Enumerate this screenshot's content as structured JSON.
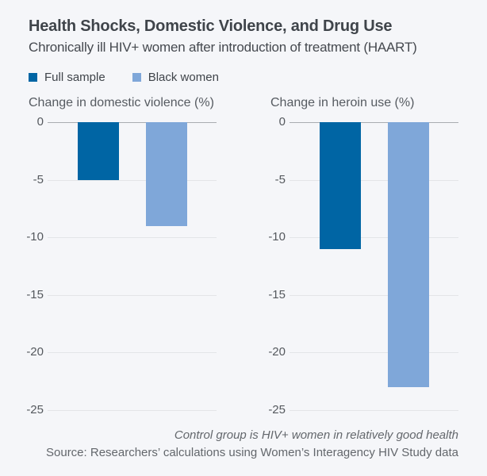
{
  "header": {
    "title": "Health Shocks, Domestic Violence, and Drug Use",
    "subtitle": "Chronically ill HIV+ women after introduction of treatment (HAART)"
  },
  "legend": [
    {
      "label": "Full sample",
      "color": "#0065A4"
    },
    {
      "label": "Black women",
      "color": "#7FA7D9"
    }
  ],
  "colors": {
    "background": "#F5F6F9",
    "full_sample_bar": "#0065A4",
    "black_women_bar": "#7FA7D9",
    "gridline": "#E3E5E8",
    "zero_line": "#A9ACB1",
    "heading_text": "#3F444A",
    "axis_text": "#55595E"
  },
  "chart_data": [
    {
      "type": "bar",
      "title": "Change in domestic violence (%)",
      "categories": [
        "Full sample",
        "Black women"
      ],
      "values": [
        -5,
        -9
      ],
      "ylabel": "Change in domestic violence (%)",
      "ylim": [
        -25,
        0
      ],
      "yticks": [
        0,
        -5,
        -10,
        -15,
        -20,
        -25
      ],
      "grid": true,
      "legend_position": "top-left"
    },
    {
      "type": "bar",
      "title": "Change in heroin use (%)",
      "categories": [
        "Full sample",
        "Black women"
      ],
      "values": [
        -11,
        -23
      ],
      "ylabel": "Change in heroin use (%)",
      "ylim": [
        -25,
        0
      ],
      "yticks": [
        0,
        -5,
        -10,
        -15,
        -20,
        -25
      ],
      "grid": true,
      "legend_position": "top-left"
    }
  ],
  "footer": {
    "note": "Control group is HIV+ women in relatively good health",
    "source": "Source: Researchers’ calculations using Women’s Interagency HIV Study data"
  }
}
